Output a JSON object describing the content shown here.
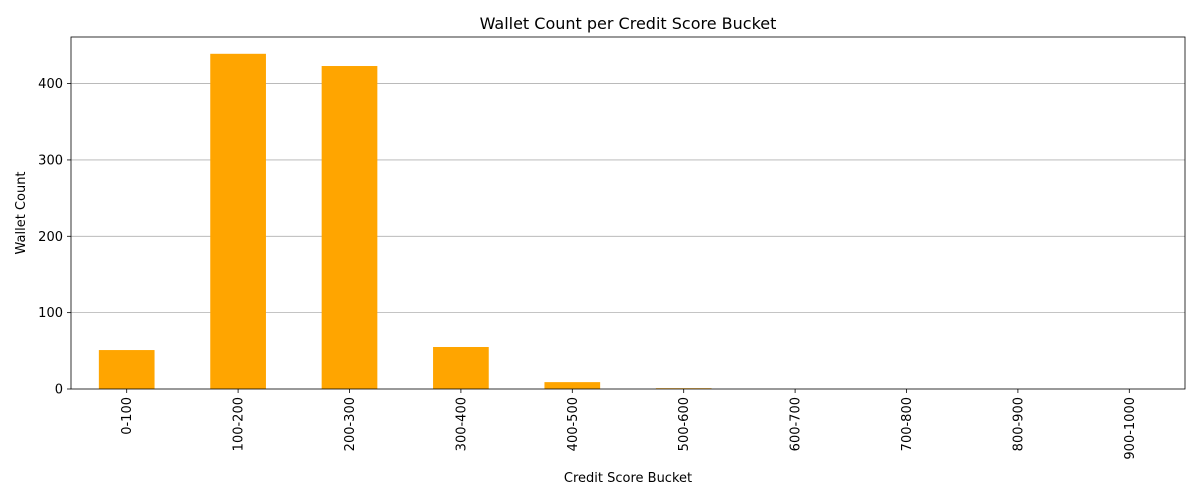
{
  "chart_data": {
    "type": "bar",
    "title": "Wallet Count per Credit Score Bucket",
    "xlabel": "Credit Score Bucket",
    "ylabel": "Wallet Count",
    "categories": [
      "0-100",
      "100-200",
      "200-300",
      "300-400",
      "400-500",
      "500-600",
      "600-700",
      "700-800",
      "800-900",
      "900-1000"
    ],
    "values": [
      51,
      439,
      423,
      55,
      9,
      1,
      0,
      0,
      0,
      0
    ],
    "ylim": [
      0,
      461
    ],
    "yticks": [
      0,
      100,
      200,
      300,
      400
    ],
    "grid": "y-axis",
    "bar_color": "#ffa500",
    "legend": "none"
  }
}
